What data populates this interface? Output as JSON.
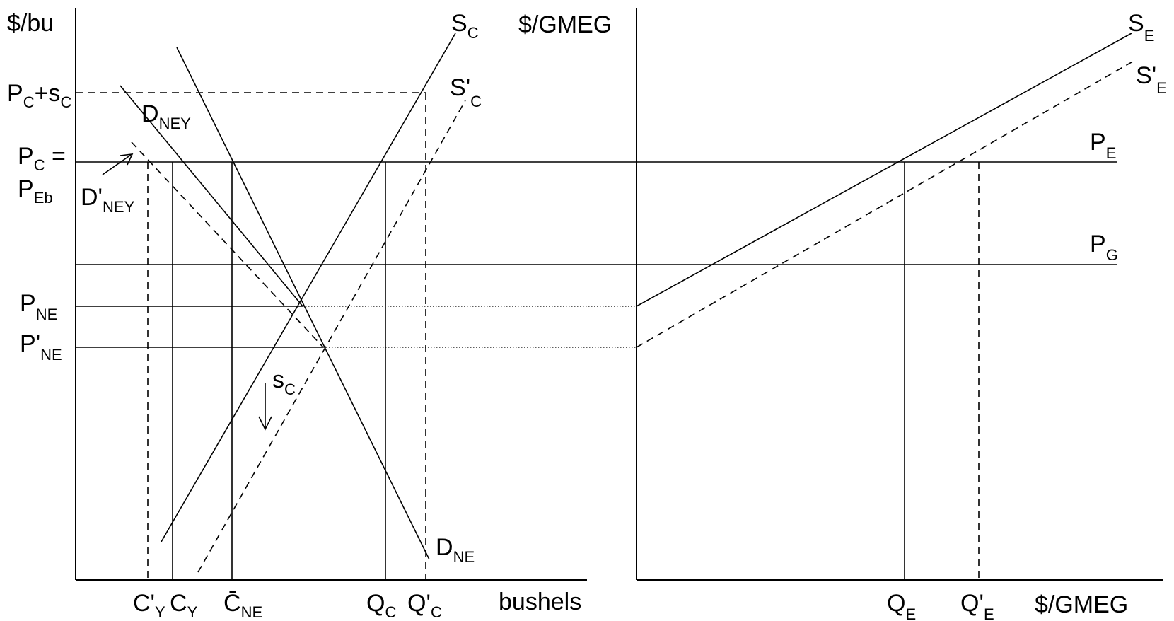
{
  "left_panel": {
    "y_axis_label": "$/bu",
    "x_axis_label": "bushels",
    "price_labels": {
      "pc_plus_sc": {
        "main": "P",
        "sub": "C",
        "tail": "+s",
        "tail_sub": "C"
      },
      "pc_eq_line1": {
        "main": "P",
        "sub": "C",
        "tail": " ="
      },
      "peb": {
        "main": "P",
        "sub": "Eb"
      },
      "pne": {
        "main": "P",
        "sub": "NE"
      },
      "pne_prime": {
        "main": "P'",
        "sub": "NE"
      }
    },
    "curve_labels": {
      "sc": {
        "main": "S",
        "sub": "C"
      },
      "sc_prime": {
        "main": "S'",
        "sub": "C"
      },
      "dney": {
        "main": "D",
        "sub": "NEY"
      },
      "dney_prime": {
        "main": "D'",
        "sub": "NEY"
      },
      "dne": {
        "main": "D",
        "sub": "NE"
      },
      "subsidy": {
        "main": "s",
        "sub": "C"
      }
    },
    "quantity_labels": {
      "cy_prime": {
        "main": "C'",
        "sub": "Y"
      },
      "cy": {
        "main": "C",
        "sub": "Y"
      },
      "cne_bar": {
        "main": "C̄",
        "sub": "NE"
      },
      "qc": {
        "main": "Q",
        "sub": "C"
      },
      "qc_prime": {
        "main": "Q'",
        "sub": "C"
      }
    }
  },
  "right_panel": {
    "y_axis_label": "$/GMEG",
    "x_axis_label": "$/GMEG",
    "curve_labels": {
      "se": {
        "main": "S",
        "sub": "E"
      },
      "se_prime": {
        "main": "S'",
        "sub": "E"
      },
      "pe": {
        "main": "P",
        "sub": "E"
      },
      "pg": {
        "main": "P",
        "sub": "G"
      }
    },
    "quantity_labels": {
      "qe": {
        "main": "Q",
        "sub": "E"
      },
      "qe_prime": {
        "main": "Q'",
        "sub": "E"
      }
    }
  }
}
